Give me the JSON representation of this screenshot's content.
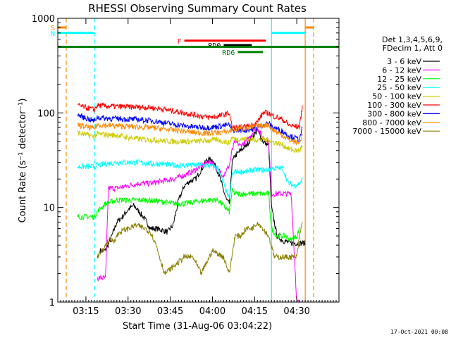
{
  "chart_data": {
    "type": "line",
    "title": "RHESSI Observing Summary Count Rates",
    "ylabel": "Count Rate (s⁻¹ detector⁻¹)",
    "xlabel": "Start Time (31-Aug-06 03:04:22)",
    "footer": "17-Oct-2021 00:08",
    "x_ticks": [
      "03:15",
      "03:30",
      "03:45",
      "04:00",
      "04:15",
      "04:30"
    ],
    "x_tick_minutes": [
      15,
      30,
      45,
      60,
      75,
      90
    ],
    "x_range_minutes": [
      5,
      105
    ],
    "y_scale": "log",
    "y_ticks": [
      "1",
      "10",
      "100",
      "1000"
    ],
    "y_tick_values": [
      1,
      10,
      100,
      1000
    ],
    "ylim": [
      1,
      1000
    ],
    "legend_header": [
      "Det 1,3,4,5,6,9,",
      "FDecim 1, Att 0"
    ],
    "legend_position": "right",
    "series": [
      {
        "name": "3 - 6 keV",
        "color": "#000000",
        "points": [
          [
            20,
            3.5
          ],
          [
            22,
            3.5
          ],
          [
            24,
            4.8
          ],
          [
            26,
            7
          ],
          [
            28,
            8
          ],
          [
            30,
            9.5
          ],
          [
            32,
            10.5
          ],
          [
            34,
            9
          ],
          [
            36,
            7.5
          ],
          [
            38,
            6
          ],
          [
            40,
            6
          ],
          [
            42,
            5.8
          ],
          [
            44,
            5.5
          ],
          [
            46,
            6.5
          ],
          [
            48,
            12
          ],
          [
            50,
            17
          ],
          [
            52,
            19
          ],
          [
            54,
            20
          ],
          [
            56,
            25
          ],
          [
            58,
            32
          ],
          [
            60,
            32
          ],
          [
            62,
            24
          ],
          [
            64,
            15
          ],
          [
            65,
            12
          ],
          [
            66,
            11
          ],
          [
            67,
            30
          ],
          [
            68,
            35
          ],
          [
            70,
            40
          ],
          [
            72,
            45
          ],
          [
            74,
            55
          ],
          [
            76,
            65
          ],
          [
            78,
            50
          ],
          [
            80,
            45
          ],
          [
            81,
            10
          ],
          [
            83,
            5
          ],
          [
            85,
            4.5
          ],
          [
            88,
            4.2
          ],
          [
            90,
            4.2
          ],
          [
            92,
            4.2
          ],
          [
            93,
            4.2
          ]
        ]
      },
      {
        "name": "6 - 12 keV",
        "color": "#ff00ff",
        "points": [
          [
            19,
            1.8
          ],
          [
            22,
            1.8
          ],
          [
            23,
            16
          ],
          [
            26,
            16
          ],
          [
            30,
            17
          ],
          [
            34,
            18
          ],
          [
            38,
            18
          ],
          [
            42,
            19
          ],
          [
            46,
            20
          ],
          [
            50,
            22
          ],
          [
            54,
            25
          ],
          [
            58,
            30
          ],
          [
            60,
            30
          ],
          [
            62,
            25
          ],
          [
            64,
            22
          ],
          [
            66,
            28
          ],
          [
            67,
            40
          ],
          [
            68,
            50
          ],
          [
            70,
            45
          ],
          [
            72,
            50
          ],
          [
            74,
            60
          ],
          [
            76,
            70
          ],
          [
            78,
            55
          ],
          [
            80,
            50
          ],
          [
            81,
            14
          ],
          [
            83,
            14
          ],
          [
            86,
            14
          ],
          [
            88,
            14
          ],
          [
            90,
            1
          ],
          [
            91,
            1
          ]
        ]
      },
      {
        "name": "12 - 25 keV",
        "color": "#00ff00",
        "points": [
          [
            12,
            8
          ],
          [
            18,
            8
          ],
          [
            19,
            9
          ],
          [
            22,
            11
          ],
          [
            26,
            12
          ],
          [
            30,
            12
          ],
          [
            34,
            12
          ],
          [
            38,
            12
          ],
          [
            42,
            11.5
          ],
          [
            46,
            11
          ],
          [
            50,
            11
          ],
          [
            54,
            11.5
          ],
          [
            58,
            12
          ],
          [
            62,
            12
          ],
          [
            66,
            9
          ],
          [
            67,
            15
          ],
          [
            68,
            14
          ],
          [
            70,
            14
          ],
          [
            72,
            14
          ],
          [
            74,
            14
          ],
          [
            76,
            14
          ],
          [
            78,
            14
          ],
          [
            80,
            14
          ],
          [
            81,
            6
          ],
          [
            83,
            5
          ],
          [
            86,
            5
          ],
          [
            88,
            4.5
          ],
          [
            90,
            5
          ],
          [
            91,
            6
          ]
        ]
      },
      {
        "name": "25 - 50 keV",
        "color": "#00ffff",
        "points": [
          [
            12,
            27
          ],
          [
            18,
            27
          ],
          [
            19,
            28
          ],
          [
            22,
            29
          ],
          [
            26,
            30
          ],
          [
            30,
            30
          ],
          [
            34,
            30
          ],
          [
            38,
            29
          ],
          [
            42,
            29
          ],
          [
            46,
            28
          ],
          [
            50,
            28
          ],
          [
            54,
            28
          ],
          [
            58,
            28
          ],
          [
            62,
            26
          ],
          [
            66,
            12
          ],
          [
            67,
            22
          ],
          [
            68,
            24
          ],
          [
            70,
            24
          ],
          [
            72,
            24
          ],
          [
            74,
            25
          ],
          [
            76,
            25
          ],
          [
            78,
            25
          ],
          [
            80,
            25
          ],
          [
            81,
            26
          ],
          [
            83,
            26
          ],
          [
            85,
            26
          ],
          [
            87,
            18
          ],
          [
            89,
            17
          ],
          [
            91,
            18
          ],
          [
            92,
            20
          ]
        ]
      },
      {
        "name": "50 - 100 keV",
        "color": "#cccc00",
        "points": [
          [
            12,
            62
          ],
          [
            18,
            56
          ],
          [
            19,
            60
          ],
          [
            22,
            59
          ],
          [
            26,
            58
          ],
          [
            30,
            55
          ],
          [
            34,
            53
          ],
          [
            38,
            52
          ],
          [
            42,
            51
          ],
          [
            46,
            50
          ],
          [
            50,
            50
          ],
          [
            54,
            50
          ],
          [
            58,
            51
          ],
          [
            62,
            52
          ],
          [
            66,
            48
          ],
          [
            67,
            55
          ],
          [
            68,
            53
          ],
          [
            70,
            53
          ],
          [
            72,
            53
          ],
          [
            74,
            53
          ],
          [
            76,
            52
          ],
          [
            78,
            52
          ],
          [
            80,
            52
          ],
          [
            81,
            50
          ],
          [
            83,
            48
          ],
          [
            85,
            46
          ],
          [
            87,
            42
          ],
          [
            89,
            40
          ],
          [
            91,
            40
          ],
          [
            92,
            45
          ]
        ]
      },
      {
        "name": "100 - 300 keV",
        "color": "#ff0000",
        "points": [
          [
            12,
            120
          ],
          [
            18,
            108
          ],
          [
            19,
            120
          ],
          [
            22,
            118
          ],
          [
            26,
            117
          ],
          [
            30,
            116
          ],
          [
            34,
            115
          ],
          [
            38,
            114
          ],
          [
            42,
            110
          ],
          [
            46,
            105
          ],
          [
            50,
            100
          ],
          [
            54,
            95
          ],
          [
            58,
            90
          ],
          [
            62,
            92
          ],
          [
            66,
            100
          ],
          [
            67,
            70
          ],
          [
            68,
            70
          ],
          [
            70,
            70
          ],
          [
            72,
            72
          ],
          [
            74,
            74
          ],
          [
            76,
            80
          ],
          [
            78,
            100
          ],
          [
            80,
            100
          ],
          [
            81,
            95
          ],
          [
            83,
            90
          ],
          [
            85,
            85
          ],
          [
            87,
            75
          ],
          [
            89,
            72
          ],
          [
            91,
            72
          ],
          [
            92,
            120
          ]
        ]
      },
      {
        "name": "300 - 800 keV",
        "color": "#0000ff",
        "points": [
          [
            12,
            95
          ],
          [
            18,
            82
          ],
          [
            19,
            90
          ],
          [
            22,
            88
          ],
          [
            26,
            87
          ],
          [
            30,
            86
          ],
          [
            34,
            85
          ],
          [
            38,
            83
          ],
          [
            42,
            80
          ],
          [
            46,
            76
          ],
          [
            50,
            73
          ],
          [
            54,
            71
          ],
          [
            58,
            70
          ],
          [
            62,
            72
          ],
          [
            66,
            75
          ],
          [
            67,
            65
          ],
          [
            68,
            66
          ],
          [
            70,
            66
          ],
          [
            72,
            66
          ],
          [
            74,
            67
          ],
          [
            76,
            70
          ],
          [
            78,
            75
          ],
          [
            80,
            78
          ],
          [
            81,
            72
          ],
          [
            83,
            68
          ],
          [
            85,
            64
          ],
          [
            87,
            58
          ],
          [
            89,
            55
          ],
          [
            91,
            52
          ],
          [
            92,
            70
          ]
        ]
      },
      {
        "name": "800 - 7000 keV",
        "color": "#ff8800",
        "points": [
          [
            12,
            75
          ],
          [
            18,
            68
          ],
          [
            19,
            75
          ],
          [
            22,
            74
          ],
          [
            26,
            73
          ],
          [
            30,
            72
          ],
          [
            34,
            71
          ],
          [
            38,
            70
          ],
          [
            42,
            68
          ],
          [
            46,
            66
          ],
          [
            50,
            64
          ],
          [
            54,
            62
          ],
          [
            58,
            61
          ],
          [
            62,
            62
          ],
          [
            66,
            64
          ],
          [
            67,
            67
          ],
          [
            68,
            68
          ],
          [
            70,
            68
          ],
          [
            72,
            69
          ],
          [
            74,
            70
          ],
          [
            76,
            72
          ],
          [
            78,
            74
          ],
          [
            80,
            75
          ],
          [
            81,
            68
          ],
          [
            83,
            62
          ],
          [
            85,
            58
          ],
          [
            87,
            52
          ],
          [
            89,
            50
          ],
          [
            91,
            48
          ],
          [
            92,
            60
          ]
        ]
      },
      {
        "name": "7000 - 15000 keV",
        "color": "#8b8000",
        "points": [
          [
            19,
            3
          ],
          [
            21,
            3.5
          ],
          [
            23,
            4.5
          ],
          [
            25,
            4.5
          ],
          [
            27,
            5.5
          ],
          [
            30,
            6
          ],
          [
            33,
            6.5
          ],
          [
            36,
            6
          ],
          [
            38,
            5.5
          ],
          [
            40,
            4
          ],
          [
            43,
            2
          ],
          [
            47,
            2.5
          ],
          [
            50,
            3
          ],
          [
            53,
            3
          ],
          [
            56,
            2
          ],
          [
            60,
            3.5
          ],
          [
            64,
            3
          ],
          [
            66,
            2
          ],
          [
            68,
            5
          ],
          [
            70,
            5
          ],
          [
            72,
            6
          ],
          [
            74,
            6
          ],
          [
            76,
            7
          ],
          [
            78,
            6
          ],
          [
            80,
            5
          ],
          [
            82,
            3
          ],
          [
            84,
            3
          ],
          [
            86,
            3
          ],
          [
            88,
            3
          ],
          [
            90,
            3
          ],
          [
            91,
            5
          ],
          [
            92,
            7
          ]
        ]
      }
    ],
    "annotations": [
      {
        "label": "S",
        "color": "#ff8800",
        "xmin": 5,
        "xmax": 8,
        "y": 800
      },
      {
        "label": "N",
        "color": "#00ffff",
        "xmin": 5,
        "xmax": 18,
        "y": 700
      },
      {
        "label": "",
        "color": "#00ffff",
        "xmin": 81,
        "xmax": 93,
        "y": 700
      },
      {
        "label": "",
        "color": "#ff8800",
        "xmin": 93,
        "xmax": 96,
        "y": 800
      },
      {
        "label": "F",
        "color": "#ff0000",
        "xmin": 50,
        "xmax": 79,
        "y": 580
      },
      {
        "label": "RD0",
        "color": "#000000",
        "xmin": 64,
        "xmax": 74,
        "y": 520
      },
      {
        "label": "",
        "color": "#008000",
        "xmin": 5,
        "xmax": 105,
        "y": 500
      },
      {
        "label": "RD6",
        "color": "#008000",
        "xmin": 69,
        "xmax": 78,
        "y": 440
      }
    ],
    "vertical_markers": [
      {
        "x": 8,
        "color": "#ff8800",
        "style": "dashed"
      },
      {
        "x": 18,
        "color": "#00ffff",
        "style": "dashed"
      },
      {
        "x": 81,
        "color": "#00ffff",
        "style": "solid"
      },
      {
        "x": 93,
        "color": "#ff8800",
        "style": "solid"
      },
      {
        "x": 96,
        "color": "#ff8800",
        "style": "dashed"
      }
    ]
  }
}
